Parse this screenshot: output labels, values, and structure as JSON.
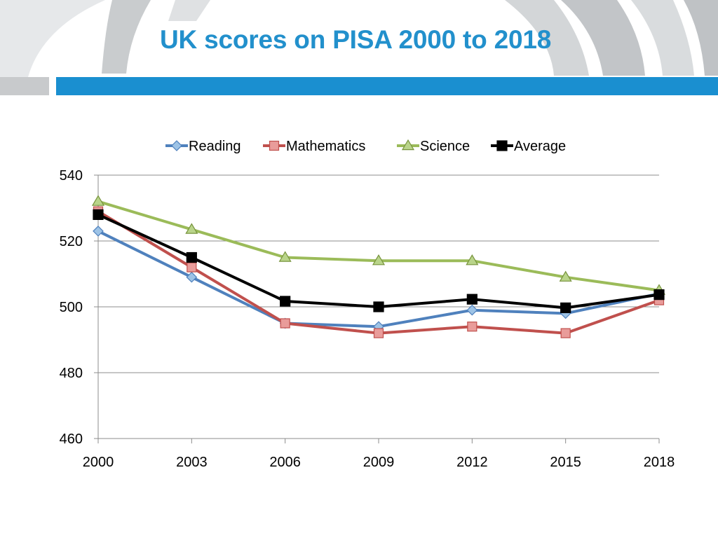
{
  "slide": {
    "title": "UK scores on PISA 2000 to 2018"
  },
  "colors": {
    "title": "#2290cc",
    "header_bar": "#1a8fd0",
    "reading": "#4f81bd",
    "mathematics": "#c0504d",
    "science": "#9bbb59",
    "average": "#000000"
  },
  "chart_data": {
    "type": "line",
    "x": [
      "2000",
      "2003",
      "2006",
      "2009",
      "2012",
      "2015",
      "2018"
    ],
    "ylim": [
      460,
      540
    ],
    "yticks": [
      460,
      480,
      500,
      520,
      540
    ],
    "grid": true,
    "legend_position": "top",
    "series": [
      {
        "name": "Reading",
        "marker": "diamond",
        "color": "#4f81bd",
        "values": [
          523,
          509,
          495,
          494,
          499,
          498,
          504
        ]
      },
      {
        "name": "Mathematics",
        "marker": "square",
        "color": "#c0504d",
        "values": [
          529,
          512,
          495,
          492,
          494,
          492,
          502
        ]
      },
      {
        "name": "Science",
        "marker": "triangle",
        "color": "#9bbb59",
        "values": [
          532,
          523.5,
          515,
          514,
          514,
          509,
          505
        ]
      },
      {
        "name": "Average",
        "marker": "square",
        "color": "#000000",
        "values": [
          528,
          515,
          501.7,
          500,
          502.3,
          499.7,
          503.7
        ]
      }
    ]
  }
}
